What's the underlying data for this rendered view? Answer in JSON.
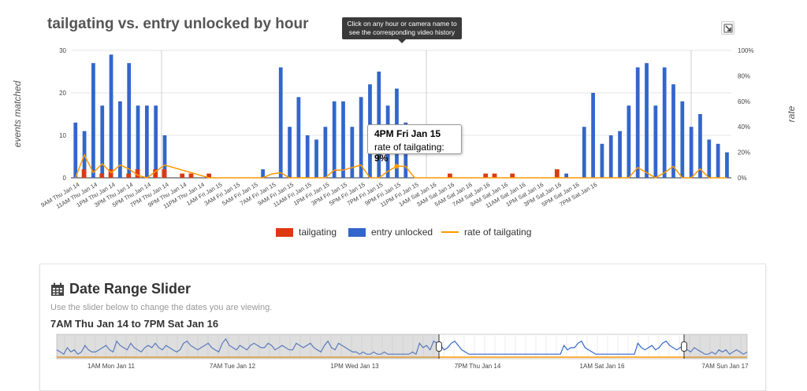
{
  "title": "tailgating vs. entry unlocked by hour",
  "tooltip_hint": "Click on any hour or camera name to see the corresponding video history",
  "export_icon": "export-download-icon",
  "chart_data": {
    "type": "bar",
    "xlabel": "",
    "ylabel": "events matched",
    "y2label": "rate",
    "ylim": [
      0,
      30
    ],
    "yticks": [
      0,
      10,
      20,
      30
    ],
    "y2lim": [
      0,
      1
    ],
    "y2ticks": [
      "0%",
      "20%",
      "40%",
      "60%",
      "80%",
      "100%"
    ],
    "x_tick_labels": [
      "9AM Thu Jan 14",
      "11AM Thu Jan 14",
      "1PM Thu Jan 14",
      "3PM Thu Jan 14",
      "5PM Thu Jan 14",
      "7PM Thu Jan 14",
      "9PM Thu Jan 14",
      "11PM Thu Jan 14",
      "1AM Fri Jan 15",
      "3AM Fri Jan 15",
      "5AM Fri Jan 15",
      "7AM Fri Jan 15",
      "9AM Fri Jan 15",
      "11AM Fri Jan 15",
      "1PM Fri Jan 15",
      "3PM Fri Jan 15",
      "5PM Fri Jan 15",
      "7PM Fri Jan 15",
      "9PM Fri Jan 15",
      "11PM Fri Jan 15",
      "1AM Sat Jan 16",
      "3AM Sat Jan 16",
      "5AM Sat Jan 16",
      "7AM Sat Jan 16",
      "9AM Sat Jan 16",
      "11AM Sat Jan 16",
      "1PM Sat Jan 16",
      "3PM Sat Jan 16",
      "5PM Sat Jan 16",
      "7PM Sat Jan 16"
    ],
    "series": [
      {
        "name": "tailgating",
        "color": "#dc3912",
        "values": [
          0,
          2,
          0,
          1,
          2,
          0,
          1,
          2,
          0,
          2,
          2,
          0,
          1,
          1,
          0,
          1,
          0,
          0,
          0,
          0,
          0,
          0,
          0,
          0,
          0,
          0,
          0,
          0,
          0,
          0,
          0,
          0,
          0,
          0,
          0,
          0,
          0,
          0,
          0,
          0,
          0,
          0,
          1,
          0,
          0,
          0,
          1,
          1,
          0,
          1,
          0,
          0,
          0,
          0,
          2,
          0,
          0,
          0,
          0,
          0,
          0,
          0,
          0,
          0,
          0,
          0,
          0,
          0,
          0,
          0,
          0,
          0,
          0,
          0,
          0,
          0,
          0,
          0,
          0,
          0,
          0,
          0,
          0,
          0,
          0,
          0,
          0,
          0,
          0,
          0,
          2,
          1,
          0,
          1,
          2,
          1,
          0,
          0,
          0,
          1,
          0,
          0,
          0,
          0,
          0,
          0,
          0,
          0,
          0,
          0,
          0,
          0,
          0,
          0,
          0,
          0,
          0,
          0,
          0,
          0,
          0,
          0,
          0,
          0,
          0,
          0,
          0,
          0,
          0,
          0,
          0,
          2,
          0,
          0,
          1,
          2,
          0,
          0,
          0,
          1,
          0,
          0,
          0,
          0,
          0
        ]
      },
      {
        "name": "entry unlocked",
        "color": "#3366cc",
        "values": [
          13,
          11,
          27,
          17,
          29,
          18,
          27,
          17,
          17,
          17,
          10,
          0,
          0,
          0,
          0,
          0,
          0,
          0,
          0,
          0,
          0,
          2,
          0,
          26,
          12,
          19,
          10,
          9,
          12,
          18,
          18,
          12,
          19,
          22,
          25,
          17,
          21,
          13,
          0,
          0,
          0,
          0,
          0,
          0,
          0,
          0,
          0,
          0,
          0,
          0,
          0,
          0,
          0,
          0,
          0,
          1,
          0,
          12,
          20,
          8,
          10,
          11,
          17,
          26,
          27,
          17,
          26,
          22,
          18,
          12,
          15,
          9,
          8,
          6
        ]
      },
      {
        "name": "rate of tailgating",
        "color": "#ff9900",
        "values": [
          0,
          0.18,
          0.04,
          0.11,
          0.04,
          0.1,
          0.07,
          0.02,
          0,
          0.05,
          0.1,
          0.08,
          0.06,
          0.04,
          0.02,
          0,
          0,
          0,
          0,
          0,
          0,
          0,
          0.03,
          0.04,
          0,
          0,
          0,
          0,
          0,
          0.06,
          0.06,
          0.08,
          0.1,
          0,
          0,
          0.05,
          0.09,
          0.09,
          0,
          0,
          0,
          0,
          0,
          0,
          0,
          0,
          0,
          0,
          0,
          0,
          0,
          0,
          0,
          0,
          0,
          0,
          0,
          0,
          0,
          0,
          0,
          0,
          0,
          0.08,
          0.04,
          0,
          0.04,
          0.09,
          0,
          0,
          0.07,
          0,
          0,
          0
        ]
      }
    ],
    "legend": [
      "tailgating",
      "entry unlocked",
      "rate of tailgating"
    ],
    "legend_position": "bottom"
  },
  "hover": {
    "time": "4PM Fri Jan 15",
    "label": "rate of tailgating:",
    "value": "9%"
  },
  "slider_card": {
    "title": "Date Range Slider",
    "subtitle": "Use the slider below to change the dates you are viewing.",
    "range_label": "7AM Thu Jan 14 to 7PM Sat Jan 16",
    "calendar_icon": "calendar-icon",
    "axis_labels": [
      "1AM Mon Jan 11",
      "7AM Tue Jan 12",
      "1PM Wed Jan 13",
      "7PM Thu Jan 14",
      "1AM Sat Jan 16",
      "7AM Sun Jan 17"
    ],
    "overview_values": [
      3,
      2,
      1,
      4,
      2,
      3,
      1,
      2,
      5,
      3,
      2,
      2,
      3,
      4,
      5,
      3,
      2,
      7,
      5,
      4,
      3,
      6,
      4,
      3,
      2,
      4,
      5,
      4,
      6,
      4,
      3,
      5,
      4,
      3,
      2,
      3,
      6,
      7,
      5,
      4,
      3,
      4,
      5,
      6,
      4,
      3,
      2,
      6,
      8,
      5,
      4,
      3,
      5,
      4,
      3,
      5,
      6,
      5,
      4,
      4,
      6,
      5,
      3,
      4,
      5,
      4,
      3,
      3,
      6,
      5,
      4,
      5,
      6,
      4,
      3,
      2,
      5,
      7,
      4,
      3,
      6,
      5,
      4,
      3,
      2,
      2,
      1,
      2,
      1,
      1,
      2,
      1,
      1,
      2,
      1,
      1,
      1,
      1,
      1,
      1,
      1,
      2,
      1,
      6,
      4,
      5,
      3,
      7,
      6,
      5,
      3,
      4,
      6,
      7,
      5,
      3,
      2,
      1,
      1,
      1,
      1,
      1,
      1,
      1,
      1,
      1,
      1,
      1,
      1,
      1,
      1,
      1,
      1,
      1,
      1,
      1,
      1,
      1,
      1,
      1,
      1,
      1,
      1,
      1,
      5,
      3,
      4,
      4,
      6,
      7,
      4,
      3,
      2,
      1,
      1,
      1,
      1,
      1,
      1,
      1,
      1,
      1,
      1,
      1,
      1,
      6,
      4,
      3,
      4,
      5,
      3,
      4,
      6,
      7,
      5,
      4,
      3,
      4,
      5,
      3,
      2,
      4,
      3,
      2,
      1,
      1,
      2,
      1,
      3,
      2,
      3,
      1,
      2,
      3,
      2,
      1,
      2
    ]
  }
}
